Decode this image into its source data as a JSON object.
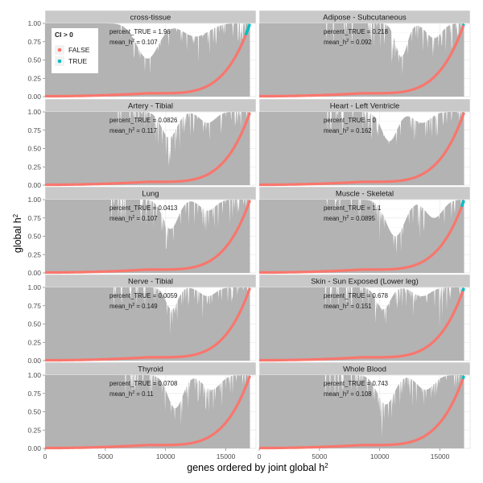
{
  "chart_data": {
    "type": "area",
    "xlabel": "genes ordered by joint global h",
    "xlabel_sup": "2",
    "ylabel": "global h",
    "ylabel_sup": "2",
    "xlim": [
      0,
      17500
    ],
    "ylim": [
      0,
      1
    ],
    "x_ticks": [
      0,
      5000,
      10000,
      15000
    ],
    "x_tick_labels": [
      "0",
      "5000",
      "10000",
      "15000"
    ],
    "y_ticks": [
      0,
      0.25,
      0.5,
      0.75,
      1
    ],
    "y_tick_labels": [
      "0.00",
      "0.25",
      "0.50",
      "0.75",
      "1.00"
    ],
    "n_genes": 17000,
    "legend": {
      "title": "CI > 0",
      "placement": "inside top-left of first panel",
      "entries": [
        {
          "label": "FALSE",
          "color": "#F8766D"
        },
        {
          "label": "TRUE",
          "color": "#00BFC4"
        }
      ]
    },
    "colors": {
      "panel_bg": "#ffffff",
      "strip_bg": "#C9C9C9",
      "ci_band": "#B3B3B3",
      "grid": "#EBEBEB",
      "false": "#F8766D",
      "true": "#00BFC4"
    },
    "annotation_labels": {
      "percent": "percent_TRUE = ",
      "mean": "mean_h",
      "mean_sup": "2",
      "mean_suffix": " = "
    },
    "panels": [
      {
        "name": "cross-tissue",
        "percent_TRUE": "1.96",
        "mean_h2": "0.107",
        "true_from_gene": 16650,
        "dip_center": 8500,
        "dip_width": 1300,
        "dip_depth": 0.48,
        "dip2_center": 12500,
        "dip2_width": 1500,
        "dip2_depth": 0.18
      },
      {
        "name": "Adipose - Subcutaneous",
        "percent_TRUE": "0.218",
        "mean_h2": "0.092",
        "true_from_gene": 16950,
        "dip_center": 11800,
        "dip_width": 700,
        "dip_depth": 0.45,
        "dip2_center": 14500,
        "dip2_width": 900,
        "dip2_depth": 0.2
      },
      {
        "name": "Artery - Tibial",
        "percent_TRUE": "0.0826",
        "mean_h2": "0.117",
        "true_from_gene": 17001,
        "dip_center": 10300,
        "dip_width": 900,
        "dip_depth": 0.35,
        "dip2_center": 13500,
        "dip2_width": 900,
        "dip2_depth": 0.15
      },
      {
        "name": "Heart - Left Ventricle",
        "percent_TRUE": "0",
        "mean_h2": "0.162",
        "true_from_gene": 17001,
        "dip_center": 10800,
        "dip_width": 900,
        "dip_depth": 0.4,
        "dip2_center": 13500,
        "dip2_width": 1000,
        "dip2_depth": 0.15
      },
      {
        "name": "Lung",
        "percent_TRUE": "0.0413",
        "mean_h2": "0.107",
        "true_from_gene": 17001,
        "dip_center": 10400,
        "dip_width": 900,
        "dip_depth": 0.4,
        "dip2_center": 13500,
        "dip2_width": 900,
        "dip2_depth": 0.15
      },
      {
        "name": "Muscle - Skeletal",
        "percent_TRUE": "1.1",
        "mean_h2": "0.0895",
        "true_from_gene": 16800,
        "dip_center": 11300,
        "dip_width": 1100,
        "dip_depth": 0.5,
        "dip2_center": 14500,
        "dip2_width": 1000,
        "dip2_depth": 0.25
      },
      {
        "name": "Nerve - Tibial",
        "percent_TRUE": "0.0059",
        "mean_h2": "0.149",
        "true_from_gene": 17001,
        "dip_center": 10500,
        "dip_width": 700,
        "dip_depth": 0.3,
        "dip2_center": 13500,
        "dip2_width": 900,
        "dip2_depth": 0.12
      },
      {
        "name": "Skin - Sun Exposed (Lower leg)",
        "percent_TRUE": "0.678",
        "mean_h2": "0.151",
        "true_from_gene": 16900,
        "dip_center": 10300,
        "dip_width": 800,
        "dip_depth": 0.3,
        "dip2_center": 13500,
        "dip2_width": 1000,
        "dip2_depth": 0.12
      },
      {
        "name": "Thyroid",
        "percent_TRUE": "0.0708",
        "mean_h2": "0.11",
        "true_from_gene": 17001,
        "dip_center": 10800,
        "dip_width": 900,
        "dip_depth": 0.45,
        "dip2_center": 13800,
        "dip2_width": 1000,
        "dip2_depth": 0.2
      },
      {
        "name": "Whole Blood",
        "percent_TRUE": "0.743",
        "mean_h2": "0.108",
        "true_from_gene": 16900,
        "dip_center": 10500,
        "dip_width": 1000,
        "dip_depth": 0.4,
        "dip2_center": 13800,
        "dip2_width": 1000,
        "dip2_depth": 0.2
      }
    ]
  }
}
